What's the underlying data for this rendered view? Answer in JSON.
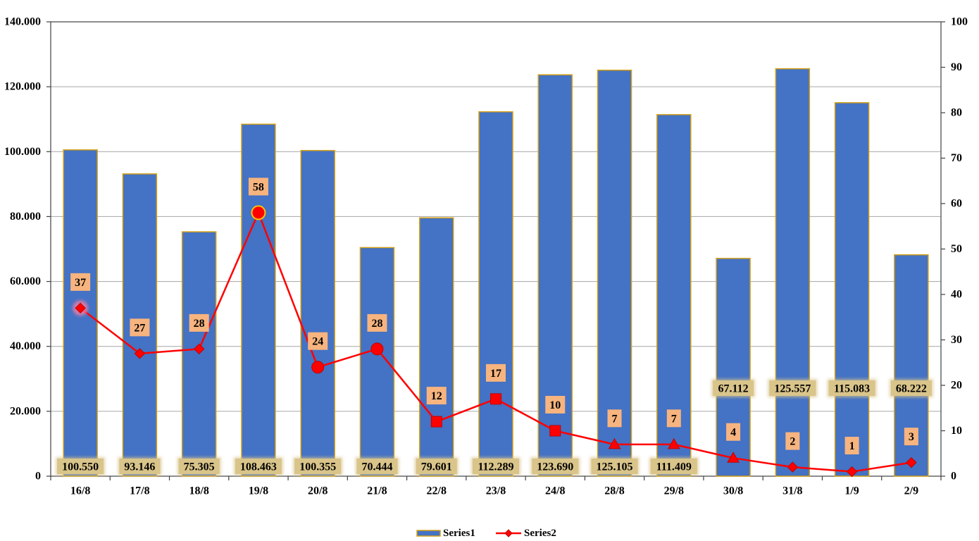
{
  "chart_data": {
    "type": "bar",
    "categories": [
      "16/8",
      "17/8",
      "18/8",
      "19/8",
      "20/8",
      "21/8",
      "22/8",
      "23/8",
      "24/8",
      "28/8",
      "29/8",
      "30/8",
      "31/8",
      "1/9",
      "2/9"
    ],
    "series": [
      {
        "name": "Series1",
        "type": "bar",
        "values": [
          100550,
          93146,
          75305,
          108463,
          100355,
          70444,
          79601,
          112289,
          123690,
          125105,
          111409,
          67112,
          125557,
          115083,
          68222
        ],
        "labels": [
          "100.550",
          "93.146",
          "75.305",
          "108.463",
          "100.355",
          "70.444",
          "79.601",
          "112.289",
          "123.690",
          "125.105",
          "111.409",
          "67.112",
          "125.557",
          "115.083",
          "68.222"
        ]
      },
      {
        "name": "Series2",
        "type": "line",
        "values": [
          37,
          27,
          28,
          58,
          24,
          28,
          12,
          17,
          10,
          7,
          7,
          4,
          2,
          1,
          3
        ],
        "labels": [
          "37",
          "27",
          "28",
          "58",
          "24",
          "28",
          "12",
          "17",
          "10",
          "7",
          "7",
          "4",
          "2",
          "1",
          "3"
        ],
        "markers": [
          "diamond",
          "diamond",
          "diamond",
          "circle",
          "circle",
          "circle",
          "square",
          "square",
          "square",
          "triangle",
          "triangle",
          "triangle",
          "diamond",
          "diamond",
          "diamond"
        ]
      }
    ],
    "y_left": {
      "min": 0,
      "max": 140000,
      "step": 20000,
      "tick_labels": [
        "0",
        "20.000",
        "40.000",
        "60.000",
        "80.000",
        "100.000",
        "120.000",
        "140.000"
      ]
    },
    "y_right": {
      "min": 0,
      "max": 100,
      "step": 10,
      "tick_labels": [
        "0",
        "10",
        "20",
        "30",
        "40",
        "50",
        "60",
        "70",
        "80",
        "90",
        "100"
      ]
    },
    "grid": true,
    "legend": {
      "position": "bottom"
    },
    "colors": {
      "bar_fill": "#4472c4",
      "bar_edge": "#d4a017",
      "line": "#ff0000",
      "marker_fill": "#ff0000",
      "marker_edge": "#c00000",
      "marker_edge_highlight": "#ffc000",
      "marker_glow": "#ff7fa0",
      "bar_label_bg": "#d9c48a",
      "point_label_bg": "#f7b47f",
      "grid": "#a6a6a6",
      "axis": "#404040",
      "text": "#000000"
    }
  }
}
